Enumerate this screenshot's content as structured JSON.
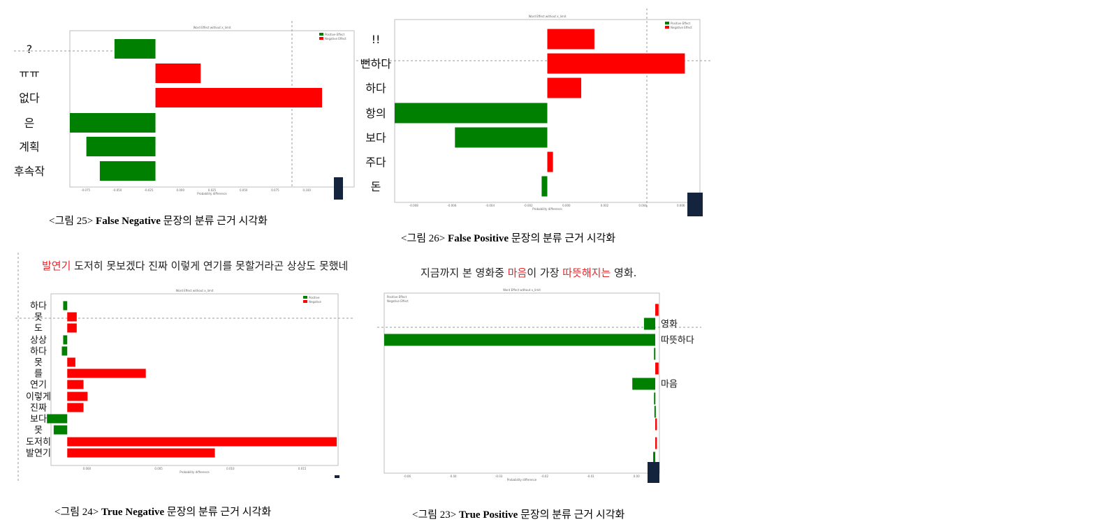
{
  "captions": {
    "fig25": {
      "pre": "<그림 25>  ",
      "bold": "False Negative",
      "post": " 문장의 분류 근거 시각화"
    },
    "fig26": {
      "pre": "<그림 26> ",
      "bold": "False Positive",
      "post": " 문장의 분류 근거 시각화"
    },
    "fig24": {
      "pre": "<그림 24> ",
      "bold": "True Negative",
      "post": " 문장의 분류 근거 시각화"
    },
    "fig23": {
      "pre": "<그림 23> ",
      "bold": "True Positive",
      "post": " 문장의 분류 근거 시각화"
    }
  },
  "sentences": {
    "fig24": {
      "hl1": "발연기",
      "rest": " 도저히 못보겠다 진짜 이렇게 연기를 못할거라곤 상상도 못했네"
    },
    "fig23": {
      "p1": "지금까지 본 영화중 ",
      "hl1": "마음",
      "p2": "이 가장 ",
      "hl2": "따뜻해지는",
      "p3": " 영화."
    }
  },
  "colors": {
    "positive": "#008000",
    "negative": "#ff0000"
  },
  "chart_data": [
    {
      "id": "fig25",
      "type": "bar",
      "orientation": "horizontal",
      "title": "Word Effect without x_limit",
      "xlabel": "Probability difference",
      "legend": [
        "Positive Effect",
        "Negative Effect"
      ],
      "legend_position": "top-right",
      "xlim": [
        -0.028,
        0.065
      ],
      "xticks": [
        "-0.075",
        "-0.050",
        "-0.025",
        "0.000",
        "0.025",
        "0.050",
        "0.075",
        "0.100",
        "0.125"
      ],
      "categories": [
        "?",
        "ㅠㅠ",
        "없다",
        "은",
        "계획",
        "후속작"
      ],
      "values": [
        -0.0134,
        0.0148,
        0.0545,
        -0.028,
        -0.0226,
        -0.0182
      ]
    },
    {
      "id": "fig26",
      "type": "bar",
      "orientation": "horizontal",
      "title": "Word Effect without x_limit",
      "xlabel": "Probability difference",
      "legend": [
        "Positive Effect",
        "Negative Effect"
      ],
      "legend_position": "top-right",
      "xlim": [
        -0.0081,
        0.0081
      ],
      "xticks": [
        "-0.008",
        "-0.006",
        "-0.004",
        "-0.002",
        "0.000",
        "0.002",
        "0.004",
        "0.006"
      ],
      "categories": [
        "!!",
        "뻔하다",
        "하다",
        "항의",
        "보다",
        "주다",
        "돈"
      ],
      "values": [
        0.0025,
        0.0073,
        0.0018,
        -0.0081,
        -0.0049,
        0.0003,
        -0.0003
      ]
    },
    {
      "id": "fig24",
      "type": "bar",
      "orientation": "horizontal",
      "title": "Word Effect without x_limit",
      "xlabel": "Probability difference",
      "legend": [
        "Positive",
        "Negative"
      ],
      "legend_position": "top-right",
      "xlim": [
        -0.0012,
        0.02
      ],
      "xticks": [
        "0.000",
        "0.005",
        "0.010",
        "0.015"
      ],
      "categories": [
        "하다",
        "못",
        "도",
        "상상",
        "하다",
        "못",
        "를",
        "연기",
        "이렇게",
        "진짜",
        "보다",
        "못",
        "도저히",
        "발연기"
      ],
      "values": [
        -0.0003,
        0.0007,
        0.0007,
        -0.0003,
        -0.0004,
        0.0006,
        0.0058,
        0.0012,
        0.0015,
        0.0012,
        -0.0015,
        -0.001,
        0.0199,
        0.0109
      ]
    },
    {
      "id": "fig23",
      "type": "bar",
      "orientation": "horizontal",
      "title": "Word Effect without x_limit",
      "xlabel": "Probability difference",
      "legend": [
        "Positive Effect",
        "Negative Effect"
      ],
      "legend_position": "top-left",
      "xlim": [
        -0.065,
        0.001
      ],
      "xticks": [
        "-0.06",
        "-0.04",
        "-0.03",
        "-0.02",
        "-0.01",
        "0.00"
      ],
      "categories": [
        "",
        "영화",
        "따뜻하다",
        "",
        "",
        "마음",
        "",
        "",
        "",
        "",
        ""
      ],
      "values": [
        0.0008,
        -0.0027,
        -0.065,
        -0.0003,
        0.0008,
        -0.0055,
        -0.0003,
        -0.0002,
        0.0004,
        0.0004,
        -0.0005
      ]
    }
  ]
}
